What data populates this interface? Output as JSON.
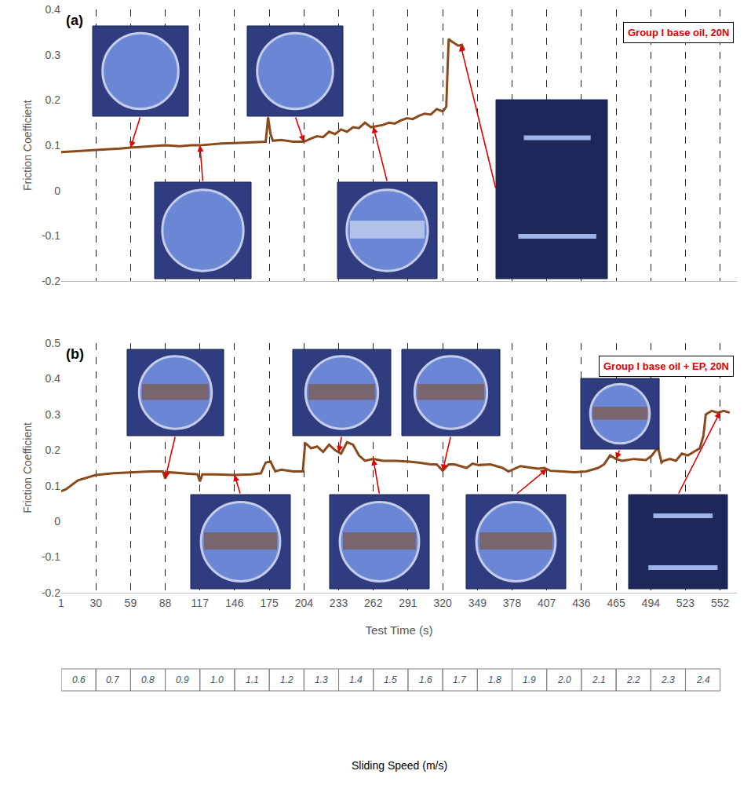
{
  "chart_data": [
    {
      "type": "line",
      "panel_label": "(a)",
      "annotations": [
        "Group I base oil, 20N"
      ],
      "y_label": "Friction Coefficient",
      "color": "#8b4a1c",
      "x": [
        1,
        10,
        20,
        30,
        40,
        50,
        59,
        70,
        80,
        88,
        100,
        110,
        117,
        125,
        135,
        146,
        155,
        165,
        172,
        174,
        176,
        178,
        185,
        195,
        204,
        210,
        215,
        220,
        225,
        230,
        235,
        240,
        245,
        250,
        255,
        260,
        265,
        270,
        275,
        280,
        285,
        290,
        295,
        300,
        305,
        310,
        315,
        320,
        323,
        325,
        327,
        330,
        333,
        336,
        338
      ],
      "values": [
        0.085,
        0.087,
        0.088,
        0.09,
        0.091,
        0.093,
        0.095,
        0.097,
        0.099,
        0.1,
        0.098,
        0.1,
        0.1,
        0.102,
        0.104,
        0.105,
        0.106,
        0.107,
        0.108,
        0.162,
        0.125,
        0.11,
        0.112,
        0.108,
        0.108,
        0.115,
        0.12,
        0.118,
        0.13,
        0.125,
        0.135,
        0.13,
        0.14,
        0.138,
        0.15,
        0.14,
        0.142,
        0.145,
        0.15,
        0.148,
        0.155,
        0.16,
        0.158,
        0.165,
        0.17,
        0.168,
        0.18,
        0.175,
        0.185,
        0.335,
        0.33,
        0.325,
        0.32,
        0.322,
        0.31
      ],
      "xlim": [
        1,
        566
      ],
      "xticks": [
        1,
        30,
        59,
        88,
        117,
        146,
        175,
        204,
        233,
        262,
        291,
        320,
        349,
        378,
        407,
        436,
        465,
        494,
        523,
        552
      ],
      "ylim": [
        -0.2,
        0.4
      ],
      "yticks": [
        -0.2,
        -0.1,
        0,
        0.1,
        0.2,
        0.3,
        0.4
      ],
      "grid": true,
      "tick_labels": "y",
      "image_times": [
        59,
        117,
        204,
        262,
        335
      ]
    },
    {
      "type": "line",
      "panel_label": "(b)",
      "annotations": [
        "Group I base oil + EP, 20N"
      ],
      "x_label": "Test Time (s)",
      "y_label": "Friction Coefficient",
      "color": "#8b4a1c",
      "x": [
        1,
        5,
        15,
        30,
        45,
        60,
        75,
        86,
        88,
        90,
        100,
        110,
        115,
        117,
        119,
        130,
        145,
        160,
        168,
        172,
        176,
        180,
        185,
        195,
        203,
        205,
        210,
        215,
        220,
        225,
        230,
        235,
        240,
        245,
        250,
        255,
        262,
        270,
        280,
        290,
        300,
        310,
        315,
        320,
        325,
        330,
        340,
        345,
        350,
        360,
        370,
        375,
        385,
        395,
        400,
        405,
        410,
        420,
        430,
        440,
        450,
        455,
        460,
        465,
        470,
        480,
        490,
        495,
        500,
        503,
        505,
        510,
        515,
        520,
        525,
        530,
        535,
        538,
        540,
        545,
        550,
        555,
        560
      ],
      "values": [
        0.085,
        0.09,
        0.115,
        0.13,
        0.135,
        0.138,
        0.14,
        0.14,
        0.12,
        0.138,
        0.135,
        0.133,
        0.132,
        0.112,
        0.132,
        0.132,
        0.13,
        0.132,
        0.135,
        0.165,
        0.168,
        0.14,
        0.145,
        0.14,
        0.14,
        0.22,
        0.205,
        0.21,
        0.195,
        0.215,
        0.2,
        0.19,
        0.222,
        0.215,
        0.185,
        0.17,
        0.175,
        0.17,
        0.17,
        0.168,
        0.165,
        0.16,
        0.16,
        0.142,
        0.16,
        0.16,
        0.15,
        0.162,
        0.158,
        0.16,
        0.15,
        0.14,
        0.155,
        0.15,
        0.148,
        0.15,
        0.142,
        0.14,
        0.138,
        0.14,
        0.15,
        0.16,
        0.185,
        0.175,
        0.17,
        0.175,
        0.172,
        0.185,
        0.208,
        0.165,
        0.17,
        0.175,
        0.17,
        0.19,
        0.185,
        0.195,
        0.205,
        0.24,
        0.3,
        0.31,
        0.305,
        0.31,
        0.305
      ],
      "xlim": [
        1,
        566
      ],
      "xticks": [
        1,
        30,
        59,
        88,
        117,
        146,
        175,
        204,
        233,
        262,
        291,
        320,
        349,
        378,
        407,
        436,
        465,
        494,
        523,
        552
      ],
      "ylim": [
        -0.2,
        0.5
      ],
      "yticks": [
        -0.2,
        -0.1,
        0,
        0.1,
        0.2,
        0.3,
        0.4,
        0.5
      ],
      "grid": true,
      "image_times": [
        88,
        146,
        233,
        262,
        320,
        407,
        465,
        552
      ],
      "speed_axis": {
        "title": "Sliding Speed (m/s)",
        "labels": [
          "0.6",
          "0.7",
          "0.8",
          "0.9",
          "1.0",
          "1.1",
          "1.2",
          "1.3",
          "1.4",
          "1.5",
          "1.6",
          "1.7",
          "1.8",
          "1.9",
          "2.0",
          "2.1",
          "2.2",
          "2.3",
          "2.4"
        ]
      }
    }
  ]
}
